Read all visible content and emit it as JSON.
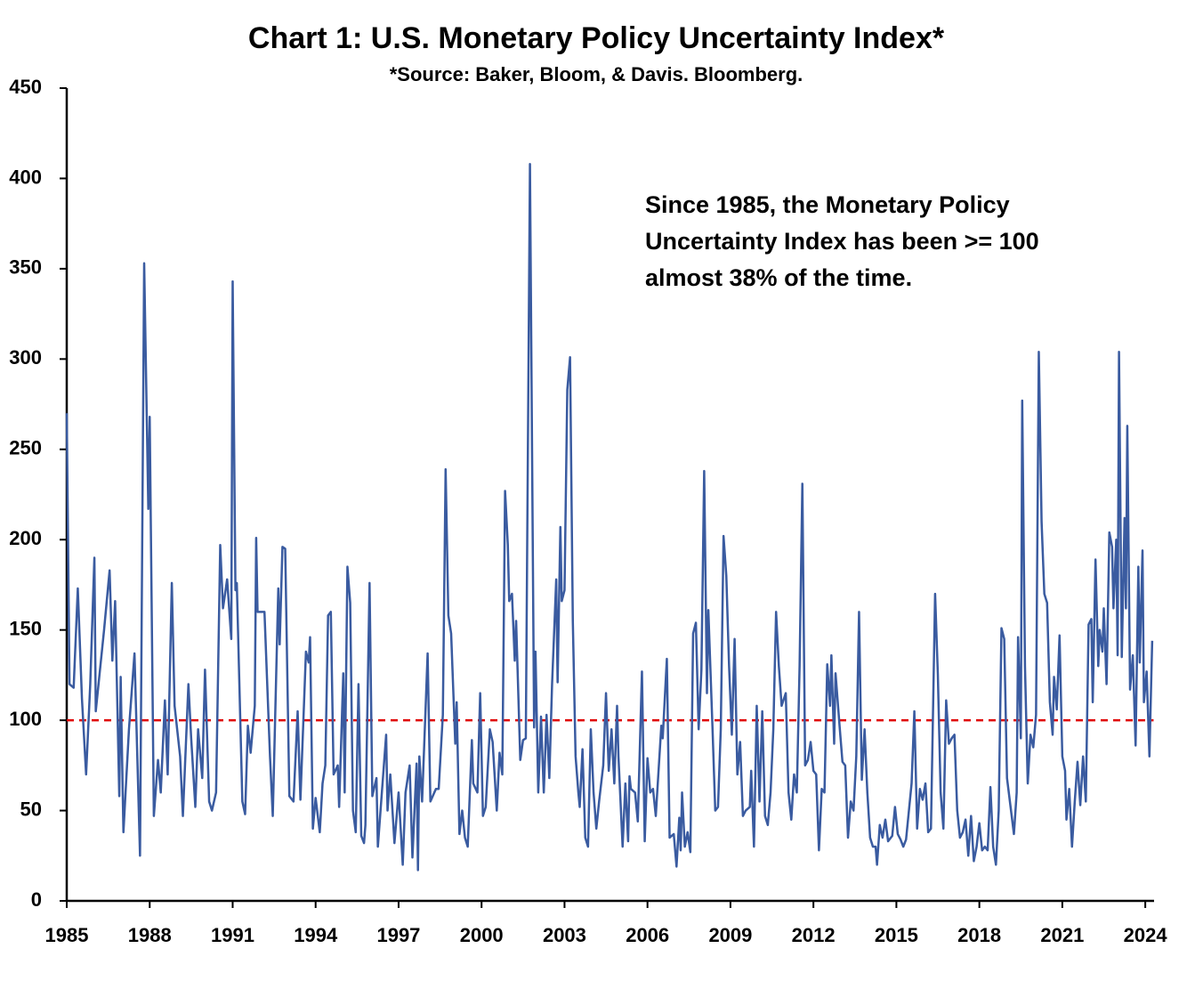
{
  "chart_data": {
    "type": "line",
    "title": "Chart 1: U.S. Monetary Policy Uncertainty Index*",
    "subtitle": "*Source: Baker, Bloom, & Davis.  Bloomberg.",
    "annotation": [
      "Since 1985, the Monetary Policy",
      "Uncertainty Index has been >= 100",
      "almost 38% of the time."
    ],
    "xlim": [
      1985,
      2024.3
    ],
    "ylim": [
      0,
      450
    ],
    "xticks": [
      1985,
      1988,
      1991,
      1994,
      1997,
      2000,
      2003,
      2006,
      2009,
      2012,
      2015,
      2018,
      2021,
      2024
    ],
    "yticks": [
      0,
      50,
      100,
      150,
      200,
      250,
      300,
      350,
      400,
      450
    ],
    "reference_line": {
      "value": 100,
      "color": "#e00000"
    },
    "series": [
      {
        "color": "#3a5ba0",
        "x": [
          1985,
          1985.1,
          1985.25,
          1985.4,
          1985.55,
          1985.7,
          1985.85,
          1986.0,
          1986.05,
          1986.35,
          1986.55,
          1986.65,
          1986.75,
          1986.9,
          1986.95,
          1987.05,
          1987.25,
          1987.45,
          1987.65,
          1987.8,
          1987.95,
          1988.0,
          1988.15,
          1988.3,
          1988.4,
          1988.55,
          1988.65,
          1988.8,
          1988.9,
          1989.1,
          1989.2,
          1989.4,
          1989.5,
          1989.65,
          1989.75,
          1989.9,
          1990.0,
          1990.15,
          1990.25,
          1990.4,
          1990.55,
          1990.65,
          1990.8,
          1990.95,
          1991.0,
          1991.1,
          1991.15,
          1991.35,
          1991.45,
          1991.55,
          1991.65,
          1991.8,
          1991.85,
          1991.9,
          1992.15,
          1992.35,
          1992.45,
          1992.65,
          1992.7,
          1992.8,
          1992.9,
          1993.05,
          1993.2,
          1993.35,
          1993.45,
          1993.65,
          1993.75,
          1993.8,
          1993.9,
          1994.0,
          1994.15,
          1994.25,
          1994.35,
          1994.45,
          1994.55,
          1994.65,
          1994.8,
          1994.85,
          1995.0,
          1995.05,
          1995.15,
          1995.25,
          1995.35,
          1995.45,
          1995.55,
          1995.65,
          1995.75,
          1995.8,
          1995.95,
          1996.05,
          1996.2,
          1996.25,
          1996.55,
          1996.6,
          1996.7,
          1996.85,
          1997.0,
          1997.15,
          1997.25,
          1997.4,
          1997.5,
          1997.65,
          1997.7,
          1997.75,
          1997.85,
          1998.05,
          1998.15,
          1998.35,
          1998.45,
          1998.6,
          1998.7,
          1998.8,
          1998.9,
          1999.05,
          1999.1,
          1999.2,
          1999.3,
          1999.4,
          1999.5,
          1999.65,
          1999.7,
          1999.85,
          1999.95,
          2000.05,
          2000.15,
          2000.3,
          2000.4,
          2000.55,
          2000.65,
          2000.75,
          2000.85,
          2000.95,
          2001.0,
          2001.1,
          2001.2,
          2001.25,
          2001.4,
          2001.5,
          2001.6,
          2001.75,
          2001.85,
          2001.9,
          2001.95,
          2002.05,
          2002.15,
          2002.25,
          2002.35,
          2002.45,
          2002.55,
          2002.7,
          2002.75,
          2002.85,
          2002.9,
          2003.0,
          2003.1,
          2003.2,
          2003.3,
          2003.4,
          2003.5,
          2003.55,
          2003.65,
          2003.75,
          2003.85,
          2003.95,
          2004.05,
          2004.15,
          2004.25,
          2004.4,
          2004.5,
          2004.6,
          2004.7,
          2004.8,
          2004.9,
          2004.95,
          2005.1,
          2005.2,
          2005.3,
          2005.35,
          2005.4,
          2005.55,
          2005.65,
          2005.8,
          2005.85,
          2005.9,
          2006.0,
          2006.1,
          2006.2,
          2006.3,
          2006.5,
          2006.55,
          2006.7,
          2006.8,
          2006.95,
          2007.05,
          2007.15,
          2007.2,
          2007.25,
          2007.35,
          2007.45,
          2007.55,
          2007.65,
          2007.75,
          2007.85,
          2007.95,
          2008.05,
          2008.15,
          2008.2,
          2008.35,
          2008.45,
          2008.55,
          2008.65,
          2008.75,
          2008.85,
          2008.95,
          2009.05,
          2009.15,
          2009.25,
          2009.35,
          2009.45,
          2009.55,
          2009.7,
          2009.75,
          2009.85,
          2009.95,
          2010.05,
          2010.15,
          2010.25,
          2010.35,
          2010.45,
          2010.55,
          2010.65,
          2010.75,
          2010.85,
          2011.0,
          2011.1,
          2011.2,
          2011.3,
          2011.4,
          2011.5,
          2011.6,
          2011.7,
          2011.8,
          2011.9,
          2012.0,
          2012.1,
          2012.2,
          2012.3,
          2012.4,
          2012.5,
          2012.6,
          2012.65,
          2012.75,
          2012.8,
          2012.95,
          2013.05,
          2013.15,
          2013.25,
          2013.35,
          2013.45,
          2013.55,
          2013.65,
          2013.75,
          2013.85,
          2013.95,
          2014.05,
          2014.15,
          2014.25,
          2014.3,
          2014.4,
          2014.5,
          2014.6,
          2014.7,
          2014.85,
          2014.95,
          2015.05,
          2015.15,
          2015.25,
          2015.35,
          2015.55,
          2015.65,
          2015.75,
          2015.85,
          2015.95,
          2016.05,
          2016.15,
          2016.25,
          2016.4,
          2016.5,
          2016.6,
          2016.7,
          2016.8,
          2016.9,
          2017.0,
          2017.1,
          2017.2,
          2017.3,
          2017.4,
          2017.5,
          2017.6,
          2017.7,
          2017.8,
          2017.9,
          2018.0,
          2018.1,
          2018.2,
          2018.3,
          2018.4,
          2018.5,
          2018.6,
          2018.7,
          2018.8,
          2018.9,
          2019.0,
          2019.25,
          2019.35,
          2019.4,
          2019.5,
          2019.55,
          2019.65,
          2019.75,
          2019.85,
          2019.95,
          2020.05,
          2020.15,
          2020.25,
          2020.35,
          2020.45,
          2020.55,
          2020.65,
          2020.7,
          2020.8,
          2020.9,
          2021.0,
          2021.1,
          2021.15,
          2021.25,
          2021.35,
          2021.45,
          2021.55,
          2021.65,
          2021.75,
          2021.85,
          2021.95,
          2022.05,
          2022.1,
          2022.2,
          2022.3,
          2022.35,
          2022.45,
          2022.5,
          2022.6,
          2022.7,
          2022.8,
          2022.85,
          2022.95,
          2023.0,
          2023.05,
          2023.15,
          2023.25,
          2023.3,
          2023.35,
          2023.45,
          2023.55,
          2023.65,
          2023.75,
          2023.8,
          2023.9,
          2023.95,
          2024.05,
          2024.15,
          2024.25
        ],
        "values": [
          270,
          120,
          118,
          173,
          112,
          70,
          120,
          190,
          105,
          150,
          183,
          133,
          166,
          58,
          124,
          38,
          95,
          137,
          25,
          353,
          217,
          268,
          47,
          78,
          60,
          111,
          70,
          176,
          108,
          80,
          47,
          120,
          90,
          52,
          95,
          68,
          128,
          55,
          50,
          60,
          197,
          162,
          178,
          145,
          343,
          172,
          176,
          55,
          48,
          97,
          82,
          108,
          201,
          160,
          160,
          80,
          47,
          173,
          142,
          196,
          195,
          58,
          55,
          105,
          56,
          138,
          132,
          146,
          40,
          57,
          38,
          65,
          75,
          158,
          160,
          70,
          75,
          52,
          126,
          60,
          185,
          165,
          50,
          38,
          120,
          36,
          32,
          42,
          176,
          58,
          68,
          30,
          92,
          50,
          70,
          32,
          60,
          20,
          60,
          75,
          24,
          76,
          17,
          80,
          55,
          137,
          55,
          62,
          62,
          103,
          239,
          158,
          148,
          87,
          110,
          37,
          50,
          35,
          30,
          89,
          65,
          60,
          115,
          47,
          52,
          95,
          88,
          50,
          82,
          70,
          227,
          197,
          166,
          170,
          133,
          155,
          78,
          89,
          90,
          408,
          200,
          96,
          138,
          60,
          102,
          60,
          103,
          68,
          120,
          178,
          121,
          207,
          166,
          172,
          283,
          301,
          155,
          80,
          60,
          52,
          84,
          35,
          30,
          95,
          60,
          40,
          55,
          75,
          115,
          72,
          95,
          65,
          108,
          80,
          30,
          65,
          33,
          69,
          62,
          60,
          44,
          127,
          80,
          33,
          79,
          60,
          62,
          47,
          97,
          90,
          134,
          35,
          37,
          19,
          46,
          28,
          60,
          30,
          38,
          27,
          148,
          154,
          95,
          128,
          238,
          115,
          161,
          96,
          50,
          52,
          95,
          202,
          180,
          130,
          92,
          145,
          70,
          88,
          47,
          50,
          52,
          72,
          30,
          108,
          55,
          105,
          47,
          42,
          60,
          95,
          160,
          130,
          108,
          115,
          60,
          45,
          70,
          60,
          130,
          231,
          75,
          78,
          88,
          72,
          70,
          28,
          62,
          60,
          131,
          108,
          136,
          87,
          126,
          96,
          77,
          75,
          35,
          55,
          50,
          80,
          160,
          67,
          95,
          60,
          35,
          30,
          30,
          20,
          42,
          35,
          45,
          33,
          36,
          52,
          37,
          34,
          30,
          34,
          65,
          105,
          40,
          62,
          56,
          65,
          38,
          40,
          170,
          125,
          60,
          40,
          111,
          87,
          90,
          92,
          50,
          35,
          38,
          45,
          25,
          47,
          22,
          30,
          43,
          28,
          30,
          28,
          63,
          30,
          20,
          50,
          151,
          145,
          68,
          37,
          60,
          146,
          90,
          277,
          130,
          65,
          92,
          85,
          103,
          304,
          210,
          170,
          165,
          110,
          92,
          124,
          106,
          147,
          80,
          72,
          45,
          62,
          30,
          55,
          77,
          53,
          80,
          55,
          153,
          156,
          110,
          189,
          130,
          150,
          138,
          162,
          120,
          204,
          196,
          162,
          200,
          136,
          304,
          135,
          212,
          162,
          263,
          117,
          136,
          86,
          185,
          132,
          194,
          110,
          127,
          80,
          144
        ]
      }
    ]
  }
}
